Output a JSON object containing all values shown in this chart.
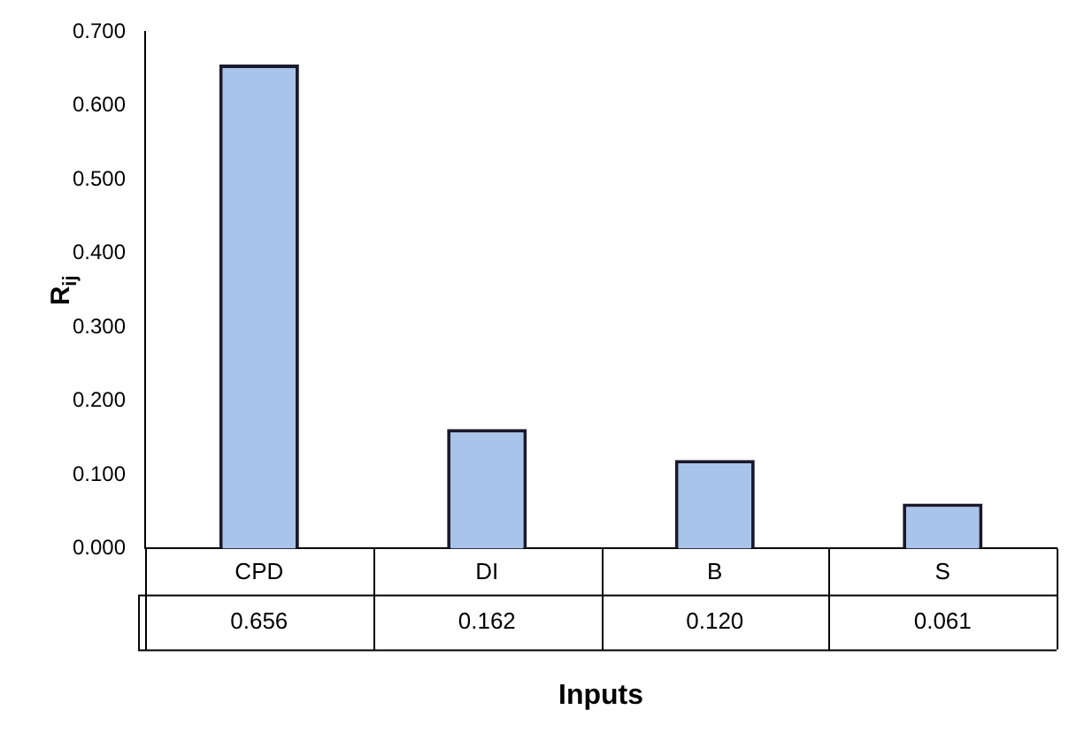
{
  "chart_data": {
    "type": "bar",
    "categories": [
      "CPD",
      "DI",
      "B",
      "S"
    ],
    "values": [
      0.656,
      0.162,
      0.12,
      0.061
    ],
    "value_labels": [
      "0.656",
      "0.162",
      "0.120",
      "0.061"
    ],
    "color": "#a9c4ea",
    "ylim": [
      0,
      0.7
    ],
    "yticks": [
      {
        "value": 0,
        "label": "0.000"
      },
      {
        "value": 0.1,
        "label": "0.100"
      },
      {
        "value": 0.2,
        "label": "0.200"
      },
      {
        "value": 0.3,
        "label": "0.300"
      },
      {
        "value": 0.4,
        "label": "0.400"
      },
      {
        "value": 0.5,
        "label": "0.500"
      },
      {
        "value": 0.6,
        "label": "0.600"
      },
      {
        "value": 0.7,
        "label": "0.700"
      }
    ],
    "xlabel": "Inputs",
    "ylabel": "R$_{ij}$",
    "grid": false,
    "legend": false
  }
}
